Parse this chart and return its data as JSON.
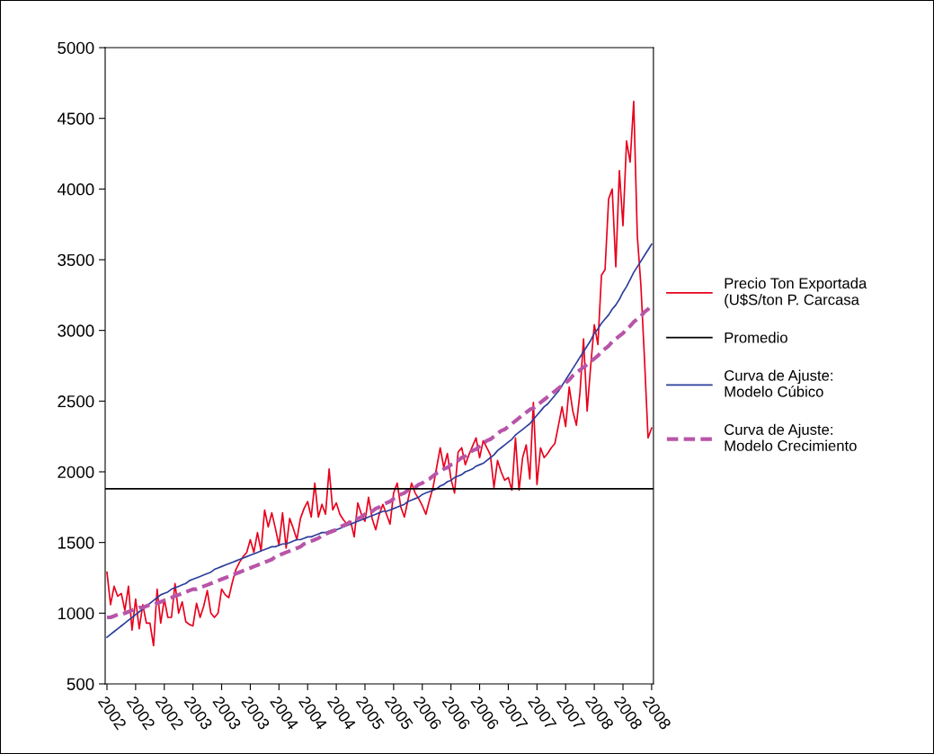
{
  "chart_data": {
    "type": "line",
    "categories": [
      "2002",
      null,
      null,
      null,
      null,
      null,
      null,
      null,
      "2002",
      null,
      null,
      null,
      null,
      null,
      null,
      null,
      "2002",
      null,
      null,
      null,
      null,
      null,
      null,
      null,
      "2003",
      null,
      null,
      null,
      null,
      null,
      null,
      null,
      "2003",
      null,
      null,
      null,
      null,
      null,
      null,
      null,
      "2003",
      null,
      null,
      null,
      null,
      null,
      null,
      null,
      "2004",
      null,
      null,
      null,
      null,
      null,
      null,
      null,
      "2004",
      null,
      null,
      null,
      null,
      null,
      null,
      null,
      "2004",
      null,
      null,
      null,
      null,
      null,
      null,
      null,
      "2005",
      null,
      null,
      null,
      null,
      null,
      null,
      null,
      "2005",
      null,
      null,
      null,
      null,
      null,
      null,
      null,
      "2006",
      null,
      null,
      null,
      null,
      null,
      null,
      null,
      "2006",
      null,
      null,
      null,
      null,
      null,
      null,
      null,
      "2006",
      null,
      null,
      null,
      null,
      null,
      null,
      null,
      "2007",
      null,
      null,
      null,
      null,
      null,
      null,
      null,
      "2007",
      null,
      null,
      null,
      null,
      null,
      null,
      null,
      "2007",
      null,
      null,
      null,
      null,
      null,
      null,
      null,
      "2008",
      null,
      null,
      null,
      null,
      null,
      null,
      null,
      "2008",
      null,
      null,
      null,
      null,
      null,
      null,
      null,
      "2008"
    ],
    "ylim": [
      500,
      5000
    ],
    "yticks": [
      500,
      1000,
      1500,
      2000,
      2500,
      3000,
      3500,
      4000,
      4500,
      5000
    ],
    "grid": false,
    "legend": "right",
    "series": [
      {
        "name": "Precio Ton Exportada\n(U$S/ton P. Carcasa",
        "color": "#e8001c",
        "line_style": "solid",
        "values": [
          1290,
          1060,
          1190,
          1120,
          1140,
          1020,
          1190,
          880,
          1100,
          890,
          1060,
          930,
          930,
          770,
          1170,
          930,
          1100,
          970,
          970,
          1210,
          1000,
          1080,
          940,
          920,
          910,
          1070,
          970,
          1050,
          1160,
          1000,
          970,
          1000,
          1170,
          1130,
          1110,
          1220,
          1310,
          1360,
          1400,
          1430,
          1520,
          1430,
          1570,
          1440,
          1730,
          1610,
          1710,
          1600,
          1480,
          1710,
          1460,
          1670,
          1600,
          1520,
          1670,
          1740,
          1790,
          1680,
          1920,
          1680,
          1770,
          1700,
          2020,
          1730,
          1780,
          1700,
          1660,
          1630,
          1650,
          1540,
          1780,
          1700,
          1650,
          1820,
          1670,
          1590,
          1700,
          1770,
          1700,
          1630,
          1850,
          1920,
          1750,
          1680,
          1800,
          1920,
          1850,
          1810,
          1760,
          1700,
          1800,
          1890,
          2030,
          2170,
          2030,
          2130,
          1950,
          1850,
          2140,
          2170,
          2050,
          2120,
          2180,
          2240,
          2100,
          2220,
          2170,
          2120,
          1890,
          2080,
          2000,
          1940,
          1960,
          1870,
          2240,
          1870,
          2100,
          2190,
          1950,
          2490,
          1910,
          2170,
          2100,
          2130,
          2170,
          2200,
          2330,
          2460,
          2320,
          2600,
          2430,
          2330,
          2560,
          2940,
          2430,
          2750,
          3040,
          2900,
          3390,
          3430,
          3930,
          4000,
          3450,
          4130,
          3740,
          4340,
          4190,
          4620,
          3670,
          3320,
          2800,
          2240,
          2310
        ]
      },
      {
        "name": "Curva de Ajuste:\nModelo Cúbico",
        "color": "#2b3e9a",
        "line_style": "solid",
        "values": [
          830,
          850,
          870,
          890,
          910,
          930,
          950,
          970,
          990,
          1010,
          1030,
          1050,
          1070,
          1090,
          1110,
          1130,
          1140,
          1150,
          1170,
          1180,
          1190,
          1200,
          1210,
          1230,
          1240,
          1250,
          1260,
          1270,
          1280,
          1290,
          1310,
          1320,
          1330,
          1340,
          1350,
          1360,
          1370,
          1380,
          1390,
          1400,
          1410,
          1420,
          1430,
          1440,
          1450,
          1460,
          1470,
          1470,
          1480,
          1490,
          1490,
          1500,
          1510,
          1520,
          1520,
          1530,
          1540,
          1540,
          1550,
          1560,
          1570,
          1570,
          1580,
          1590,
          1590,
          1600,
          1610,
          1620,
          1630,
          1640,
          1650,
          1660,
          1670,
          1680,
          1690,
          1700,
          1710,
          1720,
          1720,
          1730,
          1740,
          1750,
          1760,
          1770,
          1790,
          1800,
          1810,
          1820,
          1840,
          1850,
          1860,
          1870,
          1880,
          1900,
          1910,
          1930,
          1940,
          1960,
          1970,
          1980,
          2000,
          2010,
          2020,
          2040,
          2050,
          2060,
          2080,
          2100,
          2120,
          2150,
          2170,
          2190,
          2210,
          2230,
          2260,
          2280,
          2300,
          2320,
          2340,
          2370,
          2400,
          2430,
          2460,
          2480,
          2510,
          2540,
          2570,
          2610,
          2650,
          2690,
          2730,
          2770,
          2810,
          2850,
          2890,
          2930,
          2980,
          3010,
          3050,
          3080,
          3110,
          3150,
          3180,
          3220,
          3270,
          3310,
          3360,
          3410,
          3450,
          3490,
          3530,
          3570,
          3610
        ]
      },
      {
        "name": "Curva de Ajuste:\nModelo Crecimiento",
        "color": "#b855a8",
        "line_style": "dashed",
        "values": [
          970,
          970,
          980,
          990,
          990,
          1000,
          1010,
          1020,
          1030,
          1040,
          1040,
          1050,
          1060,
          1060,
          1070,
          1080,
          1090,
          1100,
          1110,
          1120,
          1130,
          1140,
          1150,
          1160,
          1170,
          1170,
          1180,
          1190,
          1200,
          1210,
          1220,
          1230,
          1240,
          1250,
          1260,
          1270,
          1280,
          1290,
          1300,
          1310,
          1320,
          1330,
          1340,
          1350,
          1360,
          1370,
          1380,
          1400,
          1410,
          1420,
          1430,
          1440,
          1450,
          1460,
          1470,
          1490,
          1500,
          1510,
          1520,
          1530,
          1550,
          1560,
          1570,
          1580,
          1590,
          1610,
          1620,
          1630,
          1650,
          1660,
          1670,
          1680,
          1700,
          1710,
          1720,
          1740,
          1750,
          1770,
          1780,
          1790,
          1810,
          1820,
          1840,
          1850,
          1870,
          1880,
          1890,
          1910,
          1920,
          1940,
          1950,
          1970,
          1990,
          2000,
          2020,
          2030,
          2050,
          2060,
          2080,
          2100,
          2110,
          2130,
          2150,
          2160,
          2180,
          2200,
          2220,
          2230,
          2250,
          2270,
          2290,
          2300,
          2320,
          2340,
          2360,
          2380,
          2400,
          2420,
          2440,
          2450,
          2470,
          2490,
          2510,
          2530,
          2550,
          2570,
          2590,
          2610,
          2630,
          2650,
          2680,
          2700,
          2720,
          2740,
          2760,
          2780,
          2800,
          2820,
          2850,
          2870,
          2890,
          2920,
          2940,
          2960,
          2980,
          3010,
          3030,
          3060,
          3080,
          3100,
          3130,
          3150,
          3180
        ]
      }
    ],
    "ref_lines": [
      {
        "axis": "y",
        "value": 1880,
        "label": "Promedio",
        "color": "#000000"
      }
    ]
  }
}
